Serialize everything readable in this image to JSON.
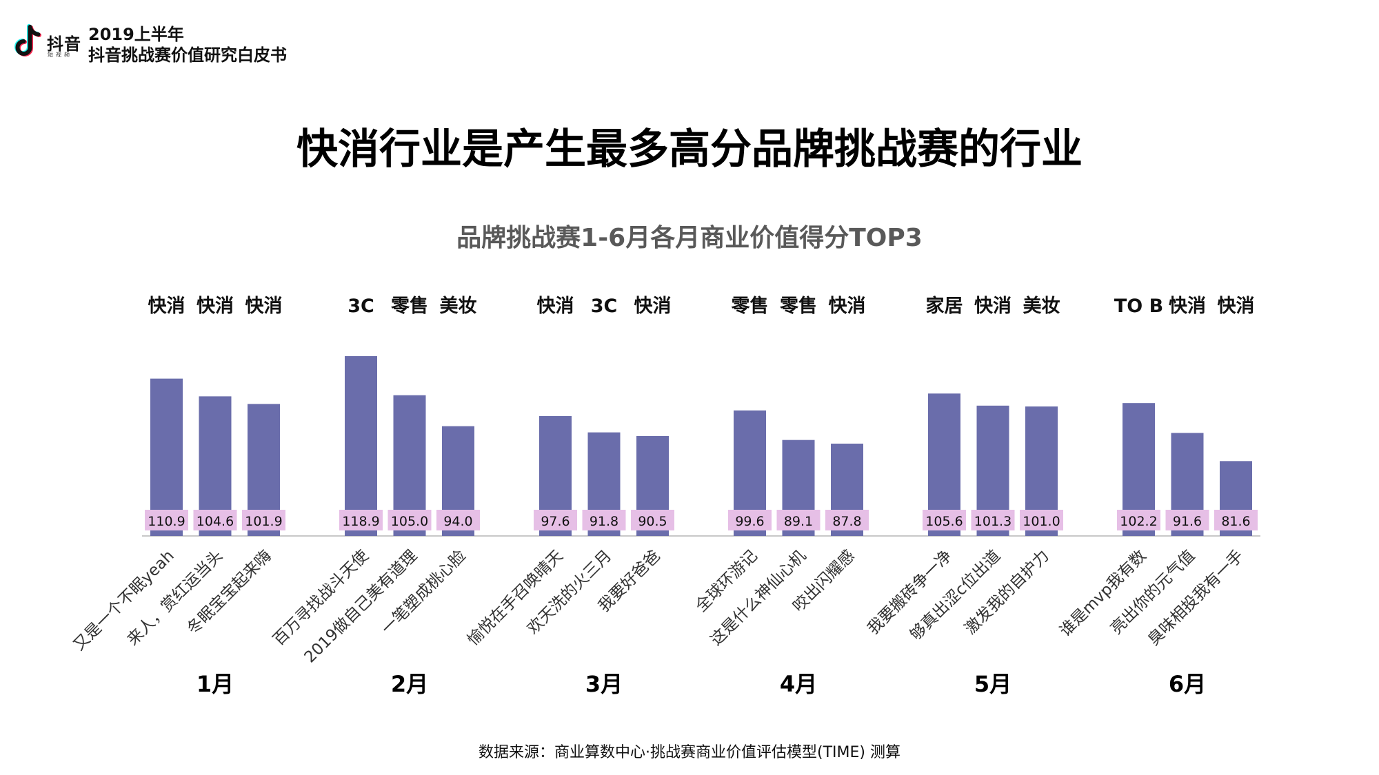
{
  "header": {
    "logo_name": "抖音",
    "logo_sub": "短视频",
    "report_year": "2019上半年",
    "report_title": "抖音挑战赛价值研究白皮书",
    "logo_icon": "tiktok-note-icon"
  },
  "page_title": "快消行业是产生最多高分品牌挑战赛的行业",
  "source": "数据来源：商业算数中心·挑战赛商业价值评估模型(TIME) 测算",
  "colors": {
    "bar": "#6a6dab",
    "label_bg": "#e6bfe6",
    "axis": "#c8c8c8",
    "subtitle": "#595959"
  },
  "chart_data": {
    "type": "bar",
    "title": "品牌挑战赛1-6月各月商业价值得分TOP3",
    "groups": [
      {
        "month": "1月",
        "bars": [
          {
            "industry": "快消",
            "name": "又是一个不眠yeah",
            "value": 110.9
          },
          {
            "industry": "快消",
            "name": "来人，赏红运当头",
            "value": 104.6
          },
          {
            "industry": "快消",
            "name": "冬眠宝宝起来嗨",
            "value": 101.9
          }
        ]
      },
      {
        "month": "2月",
        "bars": [
          {
            "industry": "3C",
            "name": "百万寻找战斗天使",
            "value": 118.9
          },
          {
            "industry": "零售",
            "name": "2019做自己美有道理",
            "value": 105.0
          },
          {
            "industry": "美妆",
            "name": "一笔塑成桃心脸",
            "value": 94.0
          }
        ]
      },
      {
        "month": "3月",
        "bars": [
          {
            "industry": "快消",
            "name": "愉悦在手召唤晴天",
            "value": 97.6
          },
          {
            "industry": "3C",
            "name": "欢天洗的火三月",
            "value": 91.8
          },
          {
            "industry": "快消",
            "name": "我要好爸爸",
            "value": 90.5
          }
        ]
      },
      {
        "month": "4月",
        "bars": [
          {
            "industry": "零售",
            "name": "全球环游记",
            "value": 99.6
          },
          {
            "industry": "零售",
            "name": "这是什么神仙心机",
            "value": 89.1
          },
          {
            "industry": "快消",
            "name": "咬出闪耀感",
            "value": 87.8
          }
        ]
      },
      {
        "month": "5月",
        "bars": [
          {
            "industry": "家居",
            "name": "我要搬砖争一净",
            "value": 105.6
          },
          {
            "industry": "快消",
            "name": "够真出涩c位出道",
            "value": 101.3
          },
          {
            "industry": "美妆",
            "name": "激发我的自护力",
            "value": 101.0
          }
        ]
      },
      {
        "month": "6月",
        "bars": [
          {
            "industry": "TO B",
            "name": "谁是mvp我有数",
            "value": 102.2
          },
          {
            "industry": "快消",
            "name": "亮出你的元气值",
            "value": 91.6
          },
          {
            "industry": "快消",
            "name": "臭味相投我有一手",
            "value": 81.6
          }
        ]
      }
    ]
  }
}
